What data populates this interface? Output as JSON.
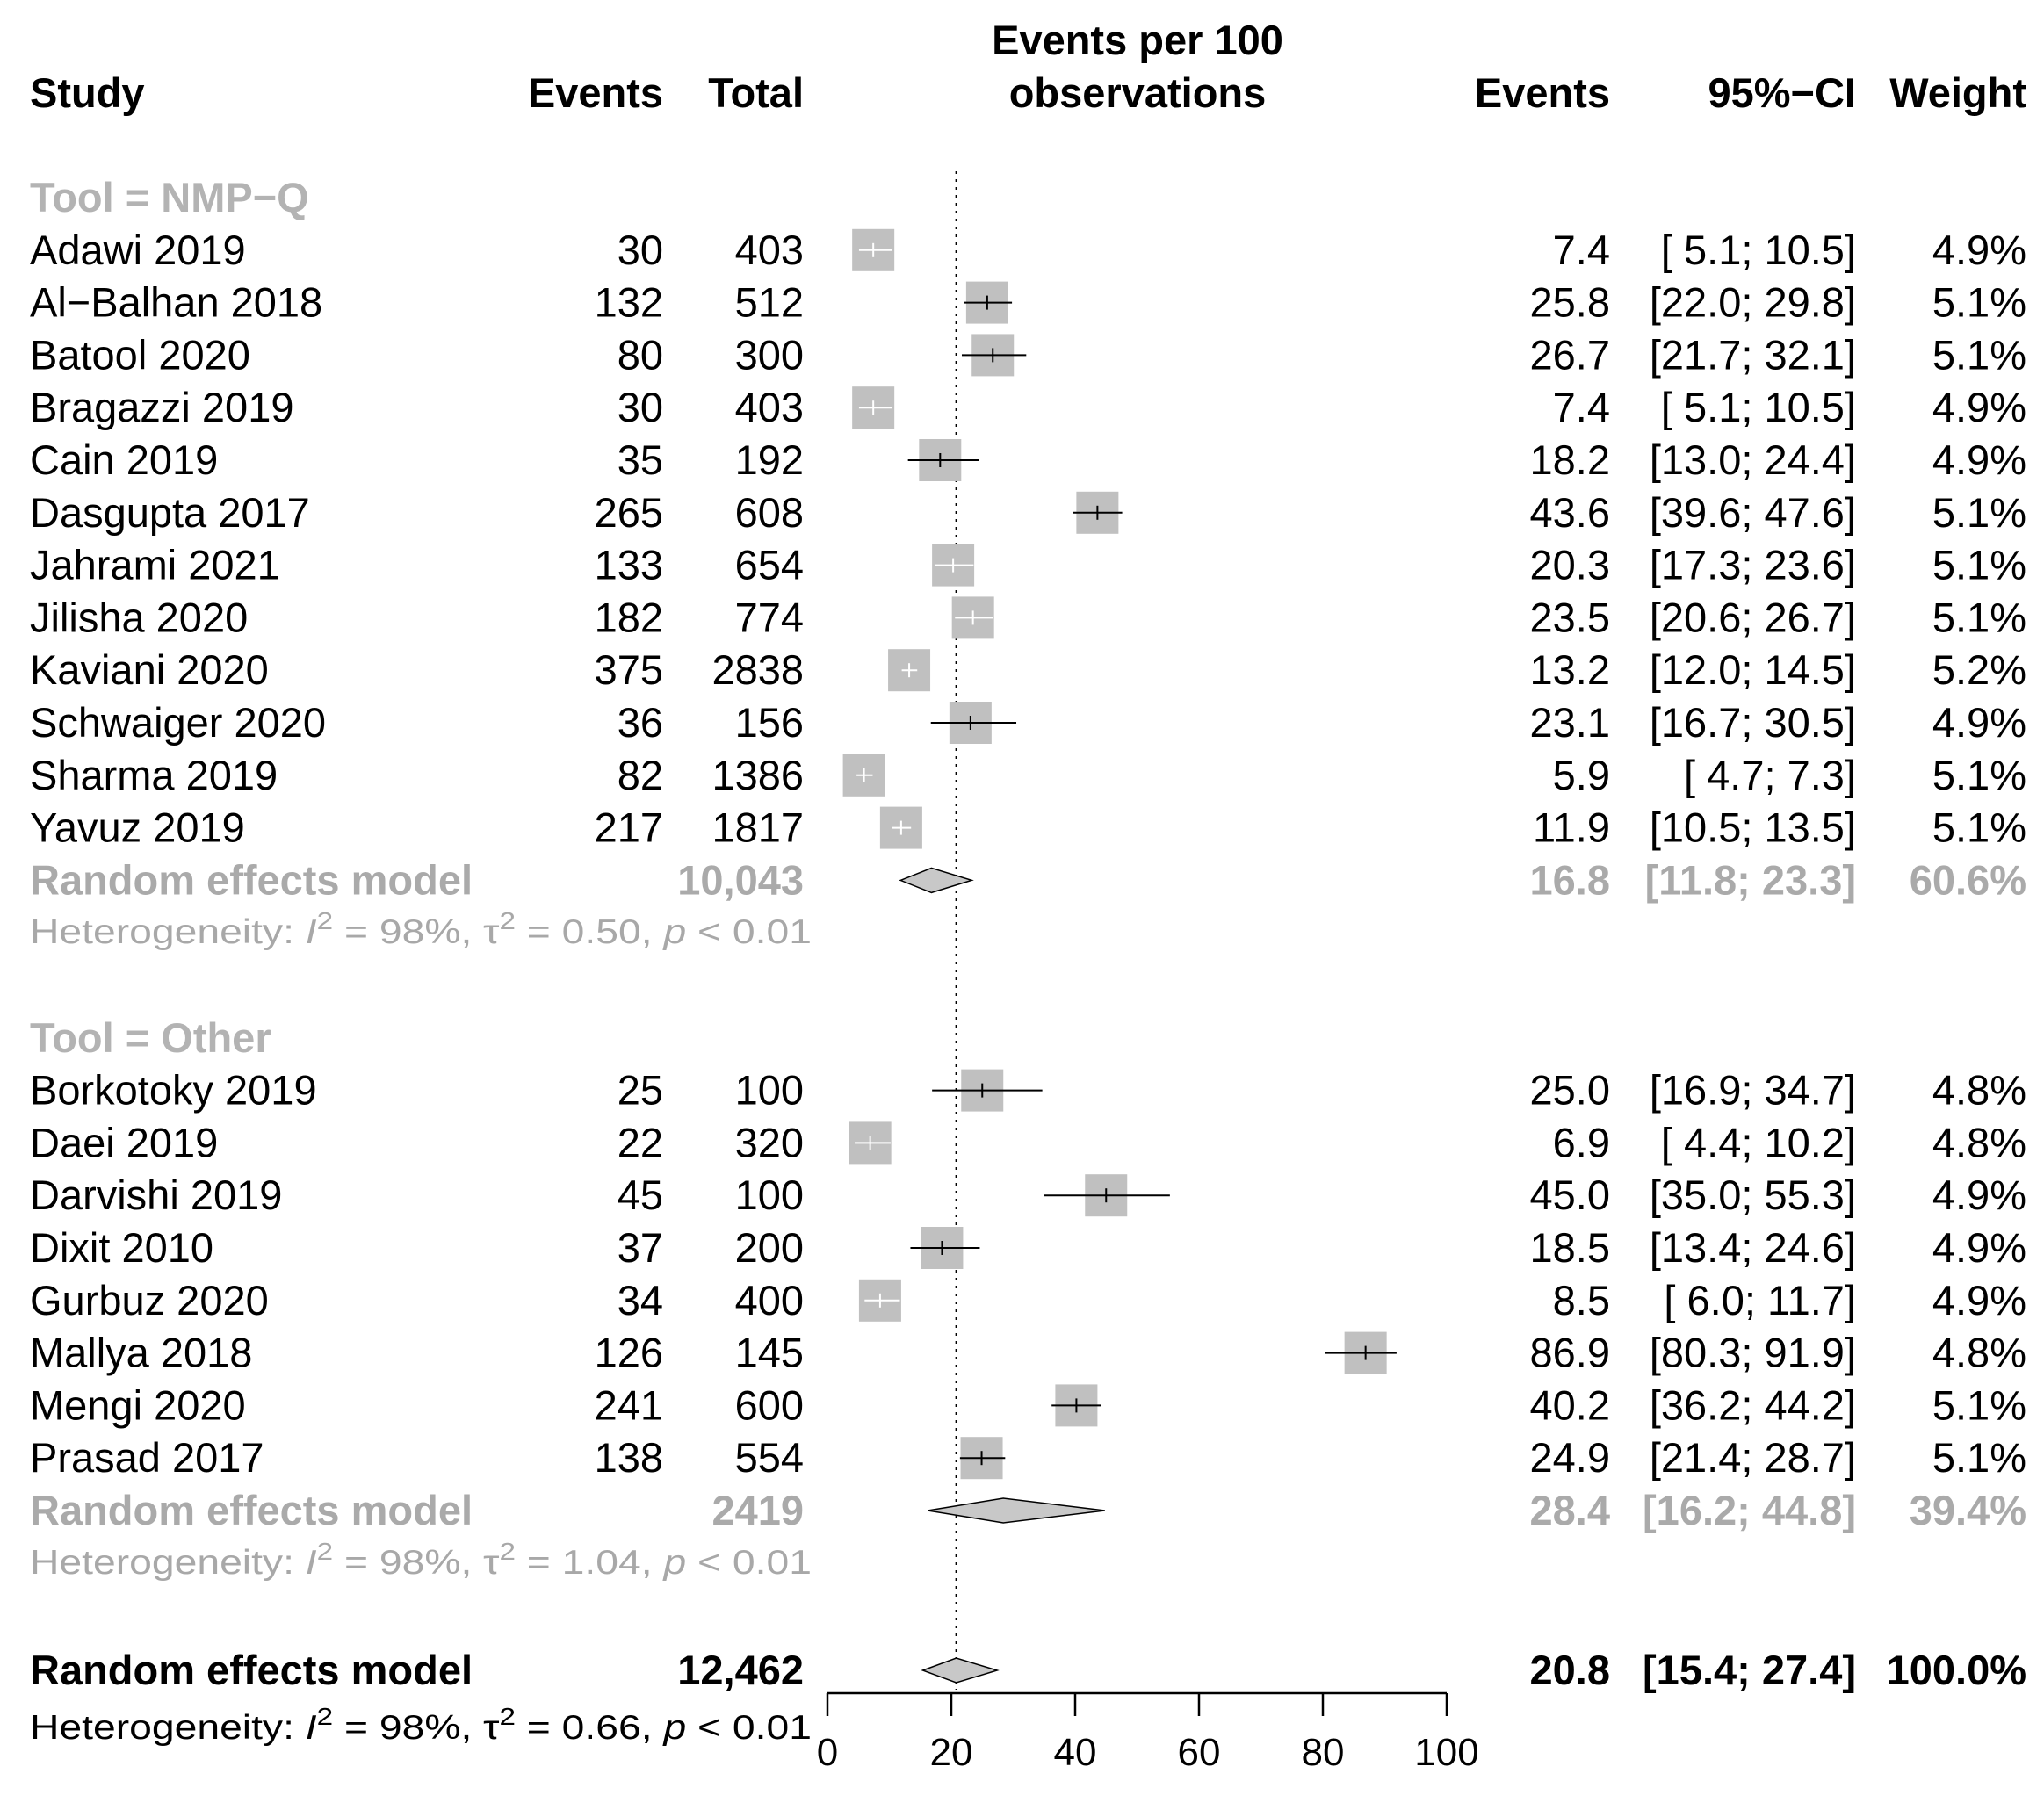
{
  "chart_data": {
    "type": "forest",
    "headers": {
      "study": "Study",
      "events": "Events",
      "total": "Total",
      "plot_title_line1": "Events per 100",
      "plot_title_line2": "observations",
      "rate": "Events",
      "ci": "95%−CI",
      "weight": "Weight"
    },
    "groups": [
      {
        "label": "Tool = NMP−Q",
        "studies": [
          {
            "study": "Adawi 2019",
            "events": "30",
            "total": "403",
            "est": 7.4,
            "lo": 5.1,
            "hi": 10.5,
            "est_text": "7.4",
            "ci_text": "[ 5.1; 10.5]",
            "weight": "4.9%"
          },
          {
            "study": "Al−Balhan 2018",
            "events": "132",
            "total": "512",
            "est": 25.8,
            "lo": 22.0,
            "hi": 29.8,
            "est_text": "25.8",
            "ci_text": "[22.0; 29.8]",
            "weight": "5.1%"
          },
          {
            "study": "Batool  2020",
            "events": "80",
            "total": "300",
            "est": 26.7,
            "lo": 21.7,
            "hi": 32.1,
            "est_text": "26.7",
            "ci_text": "[21.7; 32.1]",
            "weight": "5.1%"
          },
          {
            "study": "Bragazzi 2019",
            "events": "30",
            "total": "403",
            "est": 7.4,
            "lo": 5.1,
            "hi": 10.5,
            "est_text": "7.4",
            "ci_text": "[ 5.1; 10.5]",
            "weight": "4.9%"
          },
          {
            "study": "Cain 2019",
            "events": "35",
            "total": "192",
            "est": 18.2,
            "lo": 13.0,
            "hi": 24.4,
            "est_text": "18.2",
            "ci_text": "[13.0; 24.4]",
            "weight": "4.9%"
          },
          {
            "study": "Dasgupta 2017",
            "events": "265",
            "total": "608",
            "est": 43.6,
            "lo": 39.6,
            "hi": 47.6,
            "est_text": "43.6",
            "ci_text": "[39.6; 47.6]",
            "weight": "5.1%"
          },
          {
            "study": "Jahrami 2021",
            "events": "133",
            "total": "654",
            "est": 20.3,
            "lo": 17.3,
            "hi": 23.6,
            "est_text": "20.3",
            "ci_text": "[17.3; 23.6]",
            "weight": "5.1%"
          },
          {
            "study": "Jilisha 2020",
            "events": "182",
            "total": "774",
            "est": 23.5,
            "lo": 20.6,
            "hi": 26.7,
            "est_text": "23.5",
            "ci_text": "[20.6; 26.7]",
            "weight": "5.1%"
          },
          {
            "study": "Kaviani 2020",
            "events": "375",
            "total": "2838",
            "est": 13.2,
            "lo": 12.0,
            "hi": 14.5,
            "est_text": "13.2",
            "ci_text": "[12.0; 14.5]",
            "weight": "5.2%"
          },
          {
            "study": "Schwaiger 2020",
            "events": "36",
            "total": "156",
            "est": 23.1,
            "lo": 16.7,
            "hi": 30.5,
            "est_text": "23.1",
            "ci_text": "[16.7; 30.5]",
            "weight": "4.9%"
          },
          {
            "study": "Sharma 2019",
            "events": "82",
            "total": "1386",
            "est": 5.9,
            "lo": 4.7,
            "hi": 7.3,
            "est_text": "5.9",
            "ci_text": "[ 4.7;  7.3]",
            "weight": "5.1%"
          },
          {
            "study": "Yavuz 2019",
            "events": "217",
            "total": "1817",
            "est": 11.9,
            "lo": 10.5,
            "hi": 13.5,
            "est_text": "11.9",
            "ci_text": "[10.5; 13.5]",
            "weight": "5.1%"
          }
        ],
        "summary": {
          "label": "Random effects model",
          "total": "10,043",
          "est": 16.8,
          "lo": 11.8,
          "hi": 23.3,
          "est_text": "16.8",
          "ci_text": "[11.8; 23.3]",
          "weight": "60.6%"
        },
        "heterogeneity": {
          "prefix": "Heterogeneity: ",
          "i_sym": "I",
          "sup": "2",
          "i2_rest": " = 98%, ",
          "tau": "τ",
          "tau_sup": "2",
          "tau_rest": " = 0.50, ",
          "p": "p",
          "p_rest": " < 0.01"
        }
      },
      {
        "label": "Tool = Other",
        "studies": [
          {
            "study": "Borkotoky 2019",
            "events": "25",
            "total": "100",
            "est": 25.0,
            "lo": 16.9,
            "hi": 34.7,
            "est_text": "25.0",
            "ci_text": "[16.9; 34.7]",
            "weight": "4.8%"
          },
          {
            "study": "Daei 2019",
            "events": "22",
            "total": "320",
            "est": 6.9,
            "lo": 4.4,
            "hi": 10.2,
            "est_text": "6.9",
            "ci_text": "[ 4.4; 10.2]",
            "weight": "4.8%"
          },
          {
            "study": "Darvishi 2019",
            "events": "45",
            "total": "100",
            "est": 45.0,
            "lo": 35.0,
            "hi": 55.3,
            "est_text": "45.0",
            "ci_text": "[35.0; 55.3]",
            "weight": "4.9%"
          },
          {
            "study": "Dixit 2010",
            "events": "37",
            "total": "200",
            "est": 18.5,
            "lo": 13.4,
            "hi": 24.6,
            "est_text": "18.5",
            "ci_text": "[13.4; 24.6]",
            "weight": "4.9%"
          },
          {
            "study": "Gurbuz 2020",
            "events": "34",
            "total": "400",
            "est": 8.5,
            "lo": 6.0,
            "hi": 11.7,
            "est_text": "8.5",
            "ci_text": "[ 6.0; 11.7]",
            "weight": "4.9%"
          },
          {
            "study": "Mallya 2018",
            "events": "126",
            "total": "145",
            "est": 86.9,
            "lo": 80.3,
            "hi": 91.9,
            "est_text": "86.9",
            "ci_text": "[80.3; 91.9]",
            "weight": "4.8%"
          },
          {
            "study": "Mengi 2020",
            "events": "241",
            "total": "600",
            "est": 40.2,
            "lo": 36.2,
            "hi": 44.2,
            "est_text": "40.2",
            "ci_text": "[36.2; 44.2]",
            "weight": "5.1%"
          },
          {
            "study": "Prasad 2017",
            "events": "138",
            "total": "554",
            "est": 24.9,
            "lo": 21.4,
            "hi": 28.7,
            "est_text": "24.9",
            "ci_text": "[21.4; 28.7]",
            "weight": "5.1%"
          }
        ],
        "summary": {
          "label": "Random effects model",
          "total": "2419",
          "est": 28.4,
          "lo": 16.2,
          "hi": 44.8,
          "est_text": "28.4",
          "ci_text": "[16.2; 44.8]",
          "weight": "39.4%"
        },
        "heterogeneity": {
          "prefix": "Heterogeneity: ",
          "i_sym": "I",
          "sup": "2",
          "i2_rest": " = 98%, ",
          "tau": "τ",
          "tau_sup": "2",
          "tau_rest": " = 1.04, ",
          "p": "p",
          "p_rest": " < 0.01"
        }
      }
    ],
    "overall": {
      "label": "Random effects model",
      "total": "12,462",
      "est": 20.8,
      "lo": 15.4,
      "hi": 27.4,
      "est_text": "20.8",
      "ci_text": "[15.4; 27.4]",
      "weight": "100.0%",
      "heterogeneity": {
        "prefix": "Heterogeneity: ",
        "i_sym": "I",
        "sup": "2",
        "i2_rest": " = 98%, ",
        "tau": "τ",
        "tau_sup": "2",
        "tau_rest": " = 0.66, ",
        "p": "p",
        "p_rest": " < 0.01"
      }
    },
    "x_axis": {
      "range": [
        0,
        100
      ],
      "ticks": [
        0,
        20,
        40,
        60,
        80,
        100
      ],
      "tick_labels": [
        "0",
        "20",
        "40",
        "60",
        "80",
        "100"
      ]
    },
    "reference_line": 20.8,
    "colors": {
      "box": "#c0c0c0",
      "diamond": "#c8c8c8",
      "subgroup_text": "#aaaaaa",
      "line": "#000000",
      "white_line": "#ffffff"
    }
  }
}
